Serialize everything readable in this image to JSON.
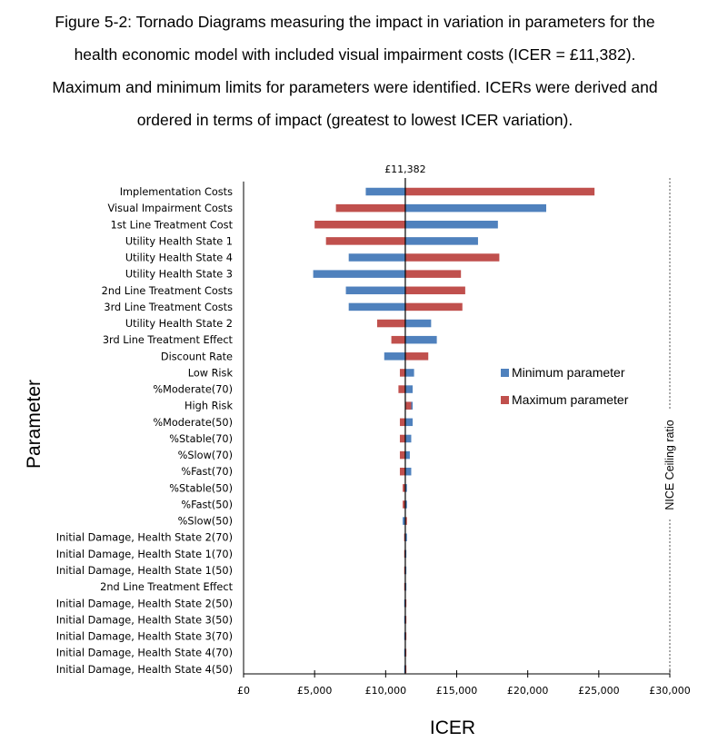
{
  "caption": {
    "lines": [
      "Figure 5-2: Tornado Diagrams measuring the impact in variation in parameters for the",
      "health economic model with included visual impairment costs (ICER = £11,382).",
      "Maximum and minimum limits for parameters were identified. ICERs were derived and",
      "ordered in terms of impact (greatest to lowest ICER variation)."
    ]
  },
  "chart_data": {
    "type": "bar",
    "orientation": "horizontal",
    "subtype": "tornado",
    "base_value": 11382,
    "base_label": "£11,382",
    "xlabel": "ICER",
    "ylabel": "Parameter",
    "xlim": [
      0,
      30000
    ],
    "xticks": [
      0,
      5000,
      10000,
      15000,
      20000,
      25000,
      30000
    ],
    "xtick_labels": [
      "£0",
      "£5,000",
      "£10,000",
      "£15,000",
      "£20,000",
      "£25,000",
      "£30,000"
    ],
    "reference_line": {
      "value": 30000,
      "label": "NICE Ceiling ratio"
    },
    "legend_position": "right",
    "categories": [
      "Implementation Costs",
      "Visual Impairment Costs",
      "1st Line Treatment Cost",
      "Utility Health State 1",
      "Utility Health State 4",
      "Utility Health State 3",
      "2nd Line Treatment Costs",
      "3rd Line Treatment Costs",
      "Utility Health State 2",
      "3rd Line Treatment Effect",
      "Discount Rate",
      "Low Risk",
      "%Moderate(70)",
      "High Risk",
      "%Moderate(50)",
      "%Stable(70)",
      "%Slow(70)",
      "%Fast(70)",
      "%Stable(50)",
      "%Fast(50)",
      "%Slow(50)",
      "Initial Damage, Health State 2(70)",
      "Initial Damage, Health State 1(70)",
      "Initial Damage, Health State 1(50)",
      "2nd Line Treatment Effect",
      "Initial Damage, Health State 2(50)",
      "Initial Damage, Health State 3(50)",
      "Initial Damage, Health State 3(70)",
      "Initial Damage, Health State 4(70)",
      "Initial Damage, Health State 4(50)"
    ],
    "series": [
      {
        "name": "Minimum parameter",
        "color": "#4F81BD",
        "values": [
          8600,
          21300,
          17900,
          16500,
          7400,
          4900,
          7200,
          7400,
          13200,
          13600,
          9900,
          12000,
          11900,
          11900,
          11900,
          11800,
          11700,
          11800,
          11500,
          11500,
          11200,
          11500,
          11450,
          11420,
          11390,
          11370,
          11370,
          11380,
          11380,
          11380
        ]
      },
      {
        "name": "Maximum parameter",
        "color": "#C0504D",
        "values": [
          24700,
          6500,
          5000,
          5800,
          18000,
          15300,
          15600,
          15400,
          9400,
          10400,
          13000,
          11000,
          10900,
          11800,
          11000,
          11000,
          11000,
          11000,
          11200,
          11200,
          11500,
          11300,
          11350,
          11360,
          11380,
          11400,
          11390,
          11390,
          11390,
          11390
        ]
      }
    ]
  }
}
